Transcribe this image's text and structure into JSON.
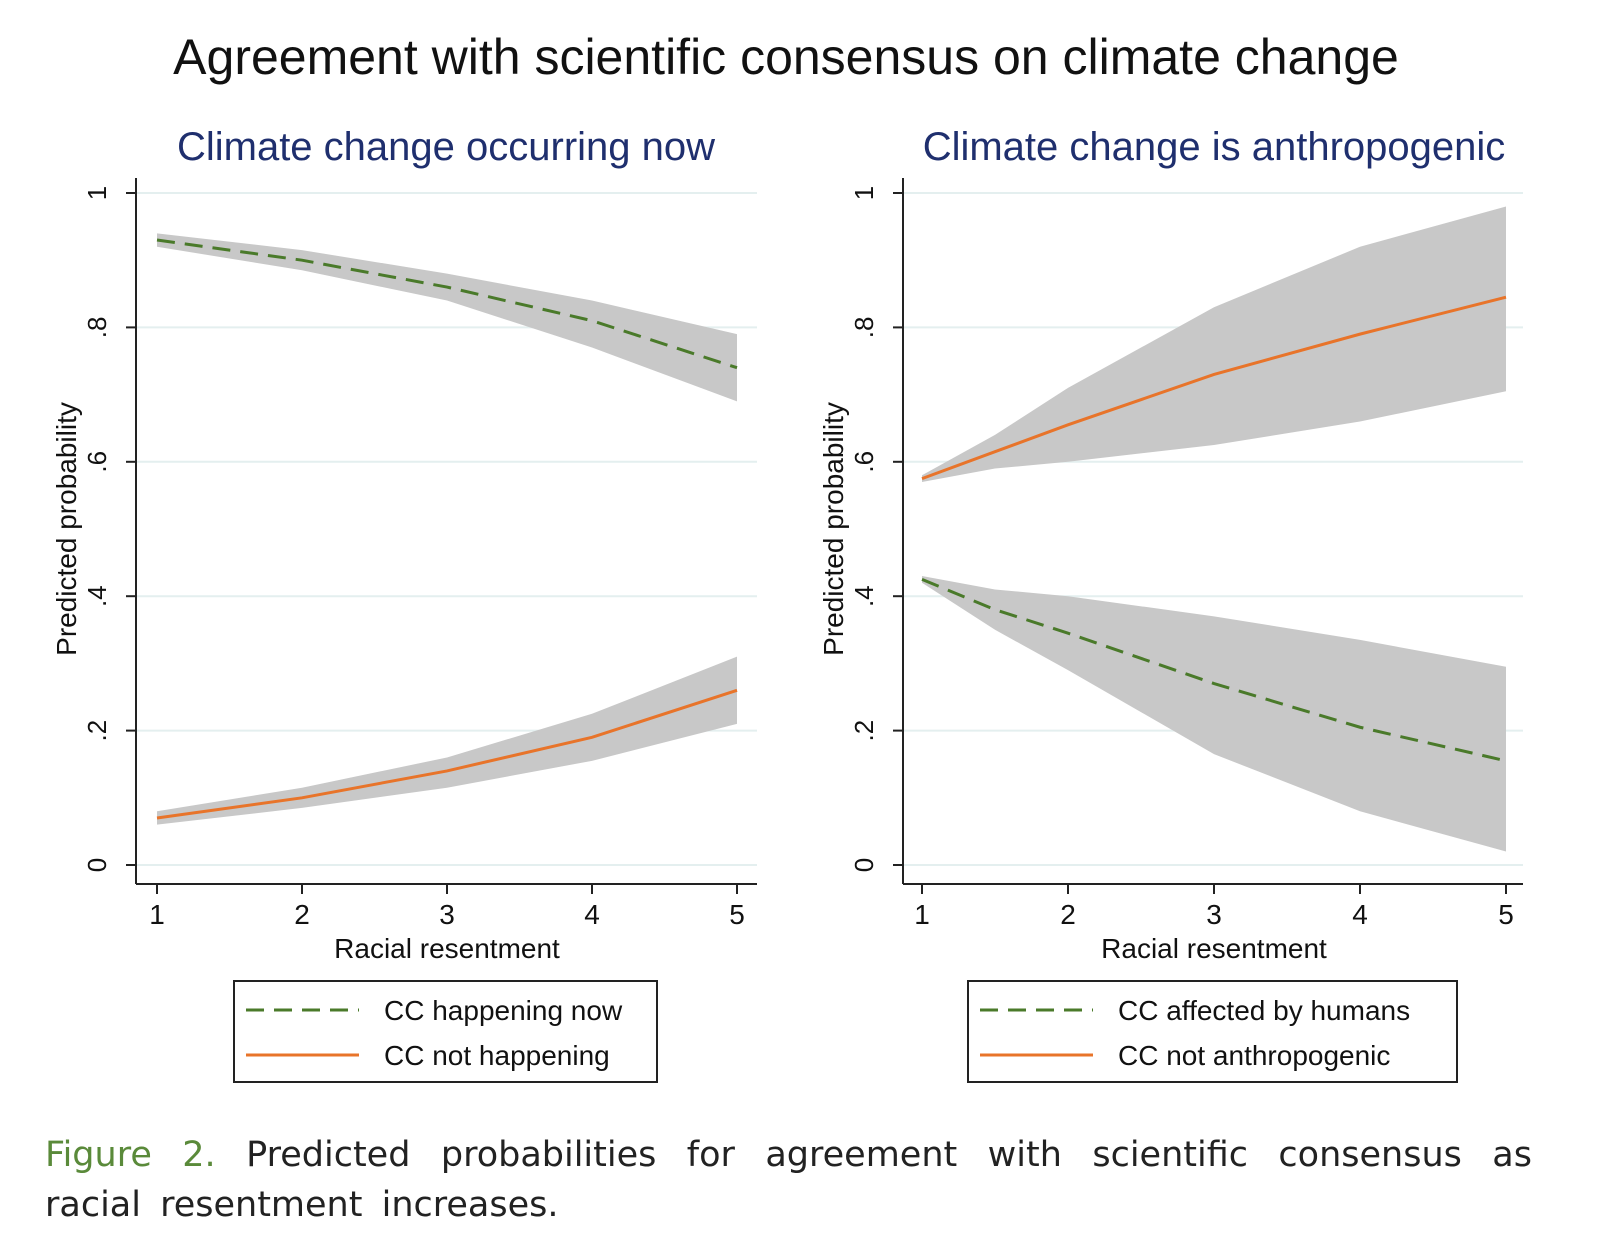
{
  "title": "Agreement with scientific consensus on climate change",
  "caption": {
    "label": "Figure 2.",
    "text": "Predicted probabilities for agreement with scientific consensus as racial resentment increases."
  },
  "colors": {
    "green": "#4a7a2a",
    "orange": "#e8742a",
    "band": "#c8c8c8",
    "grid": "#e4efef",
    "subtitle": "#1f2f6e",
    "caption_label": "#5a8a3a"
  },
  "chart_data": [
    {
      "type": "line",
      "title": "Climate change occurring now",
      "xlabel": "Racial resentment",
      "ylabel": "Predicted probability",
      "xlim": [
        1,
        5
      ],
      "ylim": [
        0,
        1
      ],
      "xticks": [
        "1",
        "2",
        "3",
        "4",
        "5"
      ],
      "yticks": [
        "0",
        ".2",
        ".4",
        ".6",
        ".8",
        "1"
      ],
      "grid": true,
      "legend": "bottom",
      "x": [
        1,
        2,
        3,
        4,
        5
      ],
      "series": [
        {
          "name": "CC happening now",
          "style": "dashed",
          "color": "#4a7a2a",
          "values": [
            0.93,
            0.9,
            0.86,
            0.81,
            0.74
          ],
          "ci_lower": [
            0.92,
            0.885,
            0.84,
            0.77,
            0.69
          ],
          "ci_upper": [
            0.94,
            0.915,
            0.88,
            0.84,
            0.79
          ]
        },
        {
          "name": "CC not happening",
          "style": "solid",
          "color": "#e8742a",
          "values": [
            0.07,
            0.1,
            0.14,
            0.19,
            0.26
          ],
          "ci_lower": [
            0.06,
            0.085,
            0.115,
            0.155,
            0.21
          ],
          "ci_upper": [
            0.08,
            0.115,
            0.16,
            0.225,
            0.31
          ]
        }
      ]
    },
    {
      "type": "line",
      "title": "Climate change is anthropogenic",
      "xlabel": "Racial resentment",
      "ylabel": "Predicted probability",
      "xlim": [
        1,
        5
      ],
      "ylim": [
        0,
        1
      ],
      "xticks": [
        "1",
        "2",
        "3",
        "4",
        "5"
      ],
      "yticks": [
        "0",
        ".2",
        ".4",
        ".6",
        ".8",
        "1"
      ],
      "grid": true,
      "legend": "bottom",
      "x": [
        1,
        1.5,
        2,
        3,
        4,
        5
      ],
      "series": [
        {
          "name": "CC affected by humans",
          "style": "dashed",
          "color": "#4a7a2a",
          "values": [
            0.425,
            0.38,
            0.345,
            0.27,
            0.205,
            0.155
          ],
          "ci_lower": [
            0.42,
            0.35,
            0.29,
            0.165,
            0.08,
            0.02
          ],
          "ci_upper": [
            0.43,
            0.41,
            0.4,
            0.37,
            0.335,
            0.295
          ]
        },
        {
          "name": "CC not anthropogenic",
          "style": "solid",
          "color": "#e8742a",
          "values": [
            0.575,
            0.615,
            0.655,
            0.73,
            0.79,
            0.845
          ],
          "ci_lower": [
            0.57,
            0.59,
            0.6,
            0.625,
            0.66,
            0.705
          ],
          "ci_upper": [
            0.58,
            0.64,
            0.71,
            0.83,
            0.92,
            0.98
          ]
        }
      ]
    }
  ]
}
